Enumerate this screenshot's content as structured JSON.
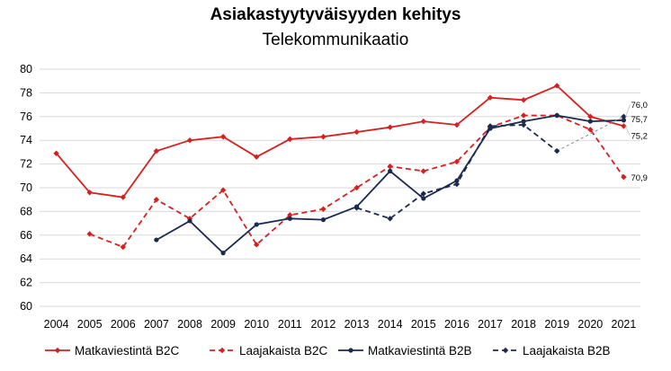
{
  "chart_data": {
    "type": "line",
    "title": "Asiakastyytyväisyyden kehitys",
    "subtitle": "Telekommunikaatio",
    "xlabel": "",
    "ylabel": "",
    "ylim": [
      60,
      80
    ],
    "ytick_step": 2,
    "grid": true,
    "legend_position": "bottom",
    "categories": [
      "2004",
      "2005",
      "2006",
      "2007",
      "2008",
      "2009",
      "2010",
      "2011",
      "2012",
      "2013",
      "2014",
      "2015",
      "2016",
      "2017",
      "2018",
      "2019",
      "2020",
      "2021"
    ],
    "series": [
      {
        "name": "Matkaviestintä B2C",
        "color": "#d62020",
        "dash": "solid",
        "values": [
          72.9,
          69.6,
          69.2,
          73.1,
          74.0,
          74.3,
          72.6,
          74.1,
          74.3,
          74.7,
          75.1,
          75.6,
          75.3,
          77.6,
          77.4,
          78.6,
          76.0,
          75.2
        ]
      },
      {
        "name": "Laajakaista B2C",
        "color": "#d62020",
        "dash": "dashed",
        "values": [
          null,
          66.1,
          65.0,
          69.0,
          67.4,
          69.8,
          65.2,
          67.7,
          68.2,
          70.0,
          71.8,
          71.4,
          72.2,
          75.1,
          76.1,
          76.1,
          74.9,
          70.9
        ]
      },
      {
        "name": "Matkaviestintä B2B",
        "color": "#1b2a4e",
        "dash": "solid",
        "values": [
          null,
          null,
          null,
          65.6,
          67.2,
          64.5,
          66.9,
          67.4,
          67.3,
          68.4,
          71.4,
          69.1,
          70.6,
          75.0,
          75.6,
          76.1,
          75.6,
          75.7
        ]
      },
      {
        "name": "Laajakaista B2B",
        "color": "#1b2a4e",
        "dash": "dashed",
        "values": [
          null,
          null,
          null,
          null,
          null,
          null,
          null,
          null,
          null,
          68.3,
          67.4,
          69.5,
          70.3,
          75.2,
          75.3,
          73.1,
          null,
          76.0
        ]
      }
    ],
    "end_labels": [
      "76,0",
      "75,7",
      "75,2",
      "70,9"
    ]
  }
}
